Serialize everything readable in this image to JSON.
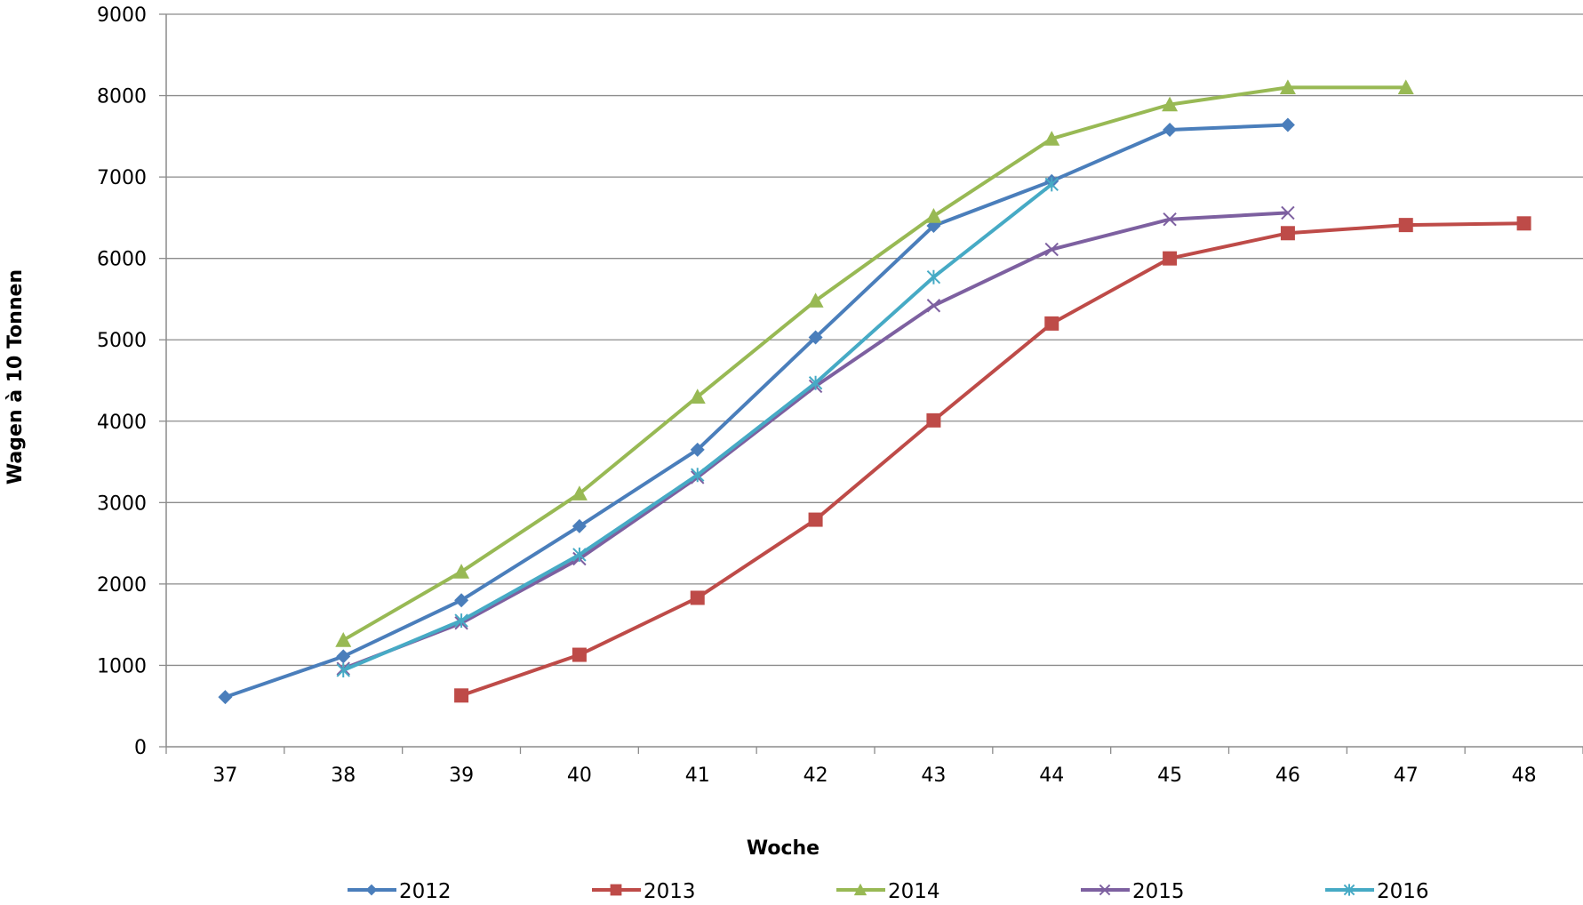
{
  "chart_data": {
    "type": "line",
    "title": "",
    "xlabel": "Woche",
    "ylabel": "Wagen à 10 Tonnen",
    "x": [
      37,
      38,
      39,
      40,
      41,
      42,
      43,
      44,
      45,
      46,
      47,
      48
    ],
    "ylim": [
      0,
      9000
    ],
    "yticks": [
      0,
      1000,
      2000,
      3000,
      4000,
      5000,
      6000,
      7000,
      8000,
      9000
    ],
    "grid": true,
    "legend_position": "bottom",
    "series": [
      {
        "name": "2012",
        "color": "#4a7ebb",
        "marker": "diamond",
        "values": [
          610,
          1110,
          1800,
          2710,
          3650,
          5030,
          6400,
          6950,
          7580,
          7640,
          null,
          null
        ]
      },
      {
        "name": "2013",
        "color": "#be4b48",
        "marker": "square",
        "values": [
          null,
          null,
          630,
          1130,
          1830,
          2790,
          4010,
          5200,
          6000,
          6310,
          6410,
          6430
        ]
      },
      {
        "name": "2014",
        "color": "#98b954",
        "marker": "triangle",
        "values": [
          null,
          1310,
          2150,
          3110,
          4300,
          5480,
          6520,
          7470,
          7890,
          8100,
          8100,
          null
        ]
      },
      {
        "name": "2015",
        "color": "#7d60a0",
        "marker": "x",
        "values": [
          null,
          960,
          1520,
          2310,
          3310,
          4430,
          5420,
          6110,
          6480,
          6560,
          null,
          null
        ]
      },
      {
        "name": "2016",
        "color": "#46aac5",
        "marker": "star",
        "values": [
          null,
          940,
          1550,
          2360,
          3340,
          4470,
          5770,
          6910,
          null,
          null,
          null,
          null
        ]
      }
    ]
  }
}
